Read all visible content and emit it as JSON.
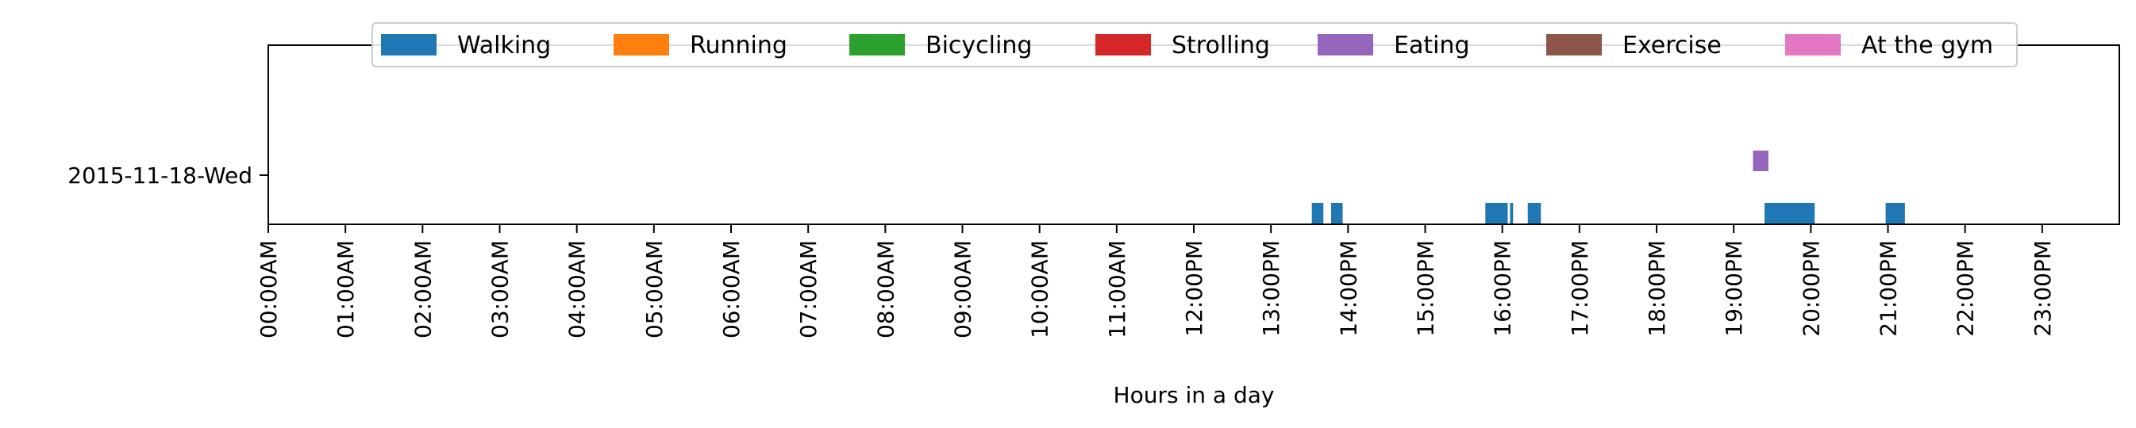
{
  "chart_data": {
    "type": "timeline",
    "xlabel": "Hours in a day",
    "xlim": [
      0,
      24
    ],
    "x_tick_labels": [
      "00:00AM",
      "01:00AM",
      "02:00AM",
      "03:00AM",
      "04:00AM",
      "05:00AM",
      "06:00AM",
      "07:00AM",
      "08:00AM",
      "09:00AM",
      "10:00AM",
      "11:00AM",
      "12:00PM",
      "13:00PM",
      "14:00PM",
      "15:00PM",
      "16:00PM",
      "17:00PM",
      "18:00PM",
      "19:00PM",
      "20:00PM",
      "21:00PM",
      "22:00PM",
      "23:00PM"
    ],
    "y_categories": [
      "2015-11-18-Wed"
    ],
    "grid": false,
    "legend": {
      "placement": "top-center",
      "entries": [
        {
          "name": "Walking",
          "color": "#1f77b4"
        },
        {
          "name": "Running",
          "color": "#ff7f0e"
        },
        {
          "name": "Bicycling",
          "color": "#2ca02c"
        },
        {
          "name": "Strolling",
          "color": "#d62728"
        },
        {
          "name": "Eating",
          "color": "#9467bd"
        },
        {
          "name": "Exercise",
          "color": "#8c564b"
        },
        {
          "name": "At the gym",
          "color": "#e377c2"
        }
      ]
    },
    "series": [
      {
        "name": "Walking",
        "lane": 0,
        "intervals": [
          [
            13.53,
            13.68
          ],
          [
            13.78,
            13.93
          ],
          [
            15.78,
            16.07
          ],
          [
            16.1,
            16.14
          ],
          [
            16.33,
            16.5
          ],
          [
            19.4,
            20.05
          ],
          [
            20.97,
            21.22
          ]
        ]
      },
      {
        "name": "Eating",
        "lane": 1,
        "intervals": [
          [
            19.25,
            19.45
          ]
        ]
      }
    ]
  }
}
